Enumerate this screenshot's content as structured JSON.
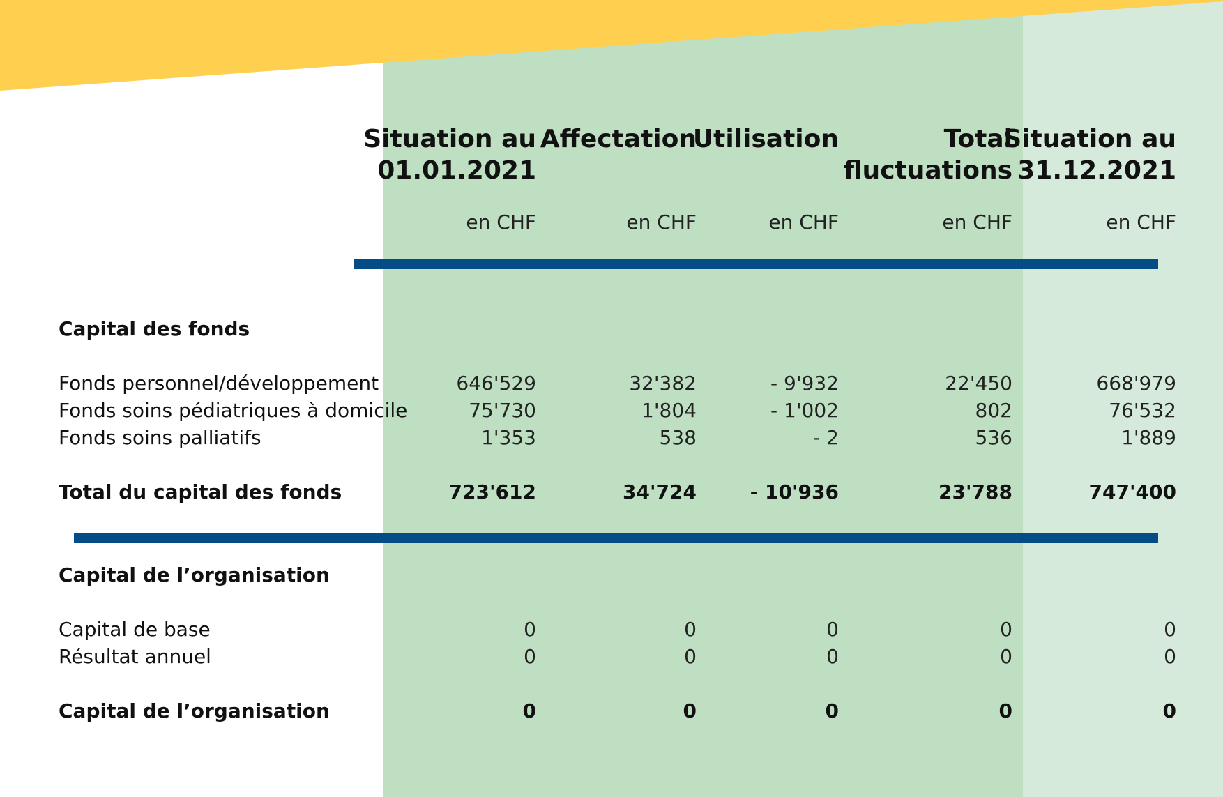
{
  "colors": {
    "banner": "#ffcf50",
    "column_bg": "#bfdfc3",
    "last_column_bg": "#d6eadb",
    "rule": "#044c86"
  },
  "columns": [
    {
      "line1": "Situation au",
      "line2": "01.01.2021",
      "unit": "en CHF"
    },
    {
      "line1": "Affectation",
      "line2": "",
      "unit": "en CHF"
    },
    {
      "line1": "Utilisation",
      "line2": "",
      "unit": "en CHF"
    },
    {
      "line1": "Total",
      "line2": "fluctuations",
      "unit": "en CHF"
    },
    {
      "line1": "Situation au",
      "line2": "31.12.2021",
      "unit": "en CHF"
    }
  ],
  "sections": [
    {
      "title": "Capital des fonds",
      "rows": [
        {
          "label": "Fonds personnel/développement",
          "values": [
            "646'529",
            "32'382",
            "- 9'932",
            "22'450",
            "668'979"
          ]
        },
        {
          "label": "Fonds soins pédiatriques à domicile",
          "values": [
            "75'730",
            "1'804",
            "- 1'002",
            "802",
            "76'532"
          ]
        },
        {
          "label": "Fonds soins palliatifs",
          "values": [
            "1'353",
            "538",
            "- 2",
            "536",
            "1'889"
          ]
        }
      ],
      "total": {
        "label": "Total du capital des fonds",
        "values": [
          "723'612",
          "34'724",
          "- 10'936",
          "23'788",
          "747'400"
        ]
      }
    },
    {
      "title": "Capital de l’organisation",
      "rows": [
        {
          "label": "Capital de base",
          "values": [
            "0",
            "0",
            "0",
            "0",
            "0"
          ]
        },
        {
          "label": "Résultat annuel",
          "values": [
            "0",
            "0",
            "0",
            "0",
            "0"
          ]
        }
      ],
      "total": {
        "label": "Capital de l’organisation",
        "values": [
          "0",
          "0",
          "0",
          "0",
          "0"
        ]
      }
    }
  ]
}
